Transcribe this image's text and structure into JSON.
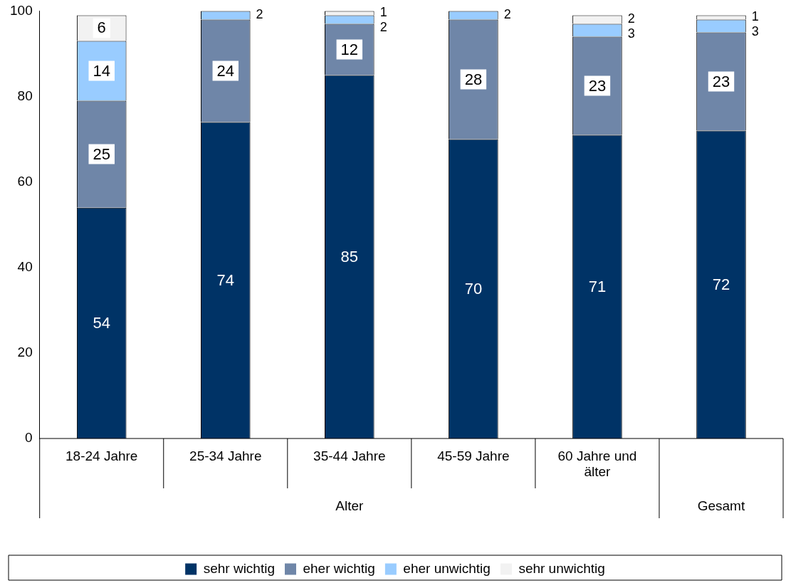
{
  "chart_data": {
    "type": "bar",
    "stacked": true,
    "categories": [
      "18-24 Jahre",
      "25-34 Jahre",
      "35-44 Jahre",
      "45-59 Jahre",
      "60 Jahre und älter",
      null
    ],
    "series": [
      {
        "name": "sehr wichtig",
        "color": "#003366",
        "values": [
          54,
          74,
          85,
          70,
          71,
          72
        ]
      },
      {
        "name": "eher wichtig",
        "color": "#6f86a8",
        "values": [
          25,
          24,
          12,
          28,
          23,
          23
        ]
      },
      {
        "name": "eher unwichtig",
        "color": "#99ccff",
        "values": [
          14,
          2,
          2,
          2,
          3,
          3
        ]
      },
      {
        "name": "sehr unwichtig",
        "color": "#f2f2f2",
        "values": [
          6,
          null,
          1,
          null,
          2,
          1
        ]
      }
    ],
    "ylim": [
      0,
      100
    ],
    "yticks": [
      0,
      20,
      40,
      60,
      80,
      100
    ],
    "grid": false,
    "legend": "bottom",
    "data_labels": true,
    "annotations": [
      "Alter",
      "Gesamt"
    ]
  }
}
